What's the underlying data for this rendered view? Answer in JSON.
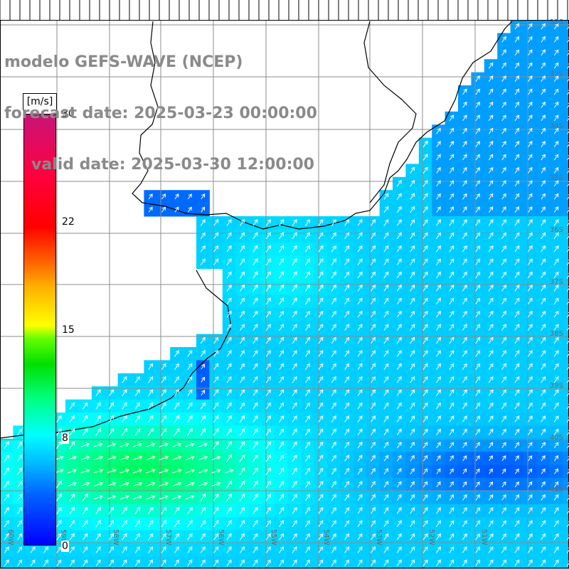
{
  "title": {
    "line1": "modelo GEFS-WAVE (NCEP)",
    "line2": "forecast date: 2025-03-23 00:00:00",
    "line3": "valid date: 2025-03-30 12:00:00"
  },
  "colorbar": {
    "unit": "[m/s]",
    "min": 0,
    "max": 30,
    "ticks": [
      "30",
      "22",
      "15",
      "8",
      "0"
    ]
  },
  "lat_labels": [
    "32S",
    "33S",
    "34S",
    "35S",
    "36S",
    "37S",
    "38S",
    "39S",
    "40S",
    "41S"
  ],
  "lon_labels": [
    "60W",
    "59W",
    "58W",
    "57W",
    "56W",
    "55W",
    "54W",
    "53W",
    "52W",
    "51W"
  ],
  "colors": {
    "land": "#ffffff",
    "grid": "#8c8c8c",
    "coast": "#000000",
    "arrow": "#ffffff",
    "title": "#8a8a8a"
  }
}
